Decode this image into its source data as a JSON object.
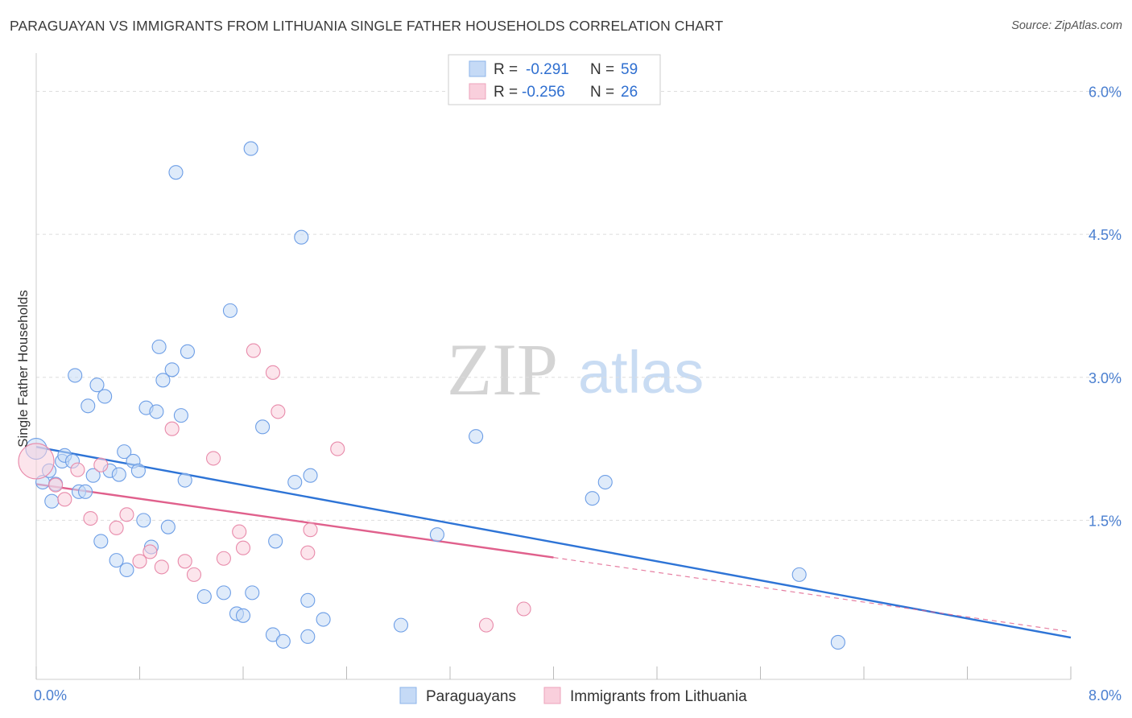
{
  "header": {
    "title": "PARAGUAYAN VS IMMIGRANTS FROM LITHUANIA SINGLE FATHER HOUSEHOLDS CORRELATION CHART",
    "source": "Source: ZipAtlas.com"
  },
  "watermark": {
    "zip": "ZIP",
    "atlas": "atlas"
  },
  "stats_legend": {
    "r_label": "R =",
    "n_label": "N =",
    "rows": [
      {
        "r": "-0.291",
        "n": "59"
      },
      {
        "r": "-0.256",
        "n": "26"
      }
    ]
  },
  "chart_data": {
    "type": "scatter",
    "title": "PARAGUAYAN VS IMMIGRANTS FROM LITHUANIA SINGLE FATHER HOUSEHOLDS CORRELATION CHART",
    "xlabel": "",
    "ylabel": "Single Father Households",
    "xlim": [
      0,
      8
    ],
    "ylim": [
      0,
      6.3
    ],
    "x_tick_labels": [
      "0.0%",
      "8.0%"
    ],
    "y_ticks": [
      1.5,
      3.0,
      4.5,
      6.0
    ],
    "y_tick_labels": [
      "1.5%",
      "3.0%",
      "4.5%",
      "6.0%"
    ],
    "grid": true,
    "legend_position": "bottom-center",
    "colors": {
      "Paraguayans": "#4a86e8",
      "Immigrants from Lithuania": "#e8729a"
    },
    "series": [
      {
        "name": "Paraguayans",
        "color": "#4a86e8",
        "trend": {
          "x": [
            0,
            8
          ],
          "y": [
            2.27,
            0.27
          ]
        },
        "points": [
          [
            0.0,
            2.25
          ],
          [
            0.05,
            1.9
          ],
          [
            0.1,
            2.02
          ],
          [
            0.12,
            1.7
          ],
          [
            0.15,
            1.88
          ],
          [
            0.2,
            2.12
          ],
          [
            0.22,
            2.18
          ],
          [
            0.28,
            2.12
          ],
          [
            0.3,
            3.02
          ],
          [
            0.33,
            1.8
          ],
          [
            0.38,
            1.8
          ],
          [
            0.4,
            2.7
          ],
          [
            0.44,
            1.97
          ],
          [
            0.47,
            2.92
          ],
          [
            0.5,
            1.28
          ],
          [
            0.53,
            2.8
          ],
          [
            0.57,
            2.02
          ],
          [
            0.62,
            1.08
          ],
          [
            0.64,
            1.98
          ],
          [
            0.68,
            2.22
          ],
          [
            0.7,
            0.98
          ],
          [
            0.75,
            2.12
          ],
          [
            0.79,
            2.02
          ],
          [
            0.83,
            1.5
          ],
          [
            0.85,
            2.68
          ],
          [
            0.89,
            1.22
          ],
          [
            0.93,
            2.64
          ],
          [
            0.95,
            3.32
          ],
          [
            0.98,
            2.97
          ],
          [
            1.02,
            1.43
          ],
          [
            1.05,
            3.08
          ],
          [
            1.08,
            5.15
          ],
          [
            1.12,
            2.6
          ],
          [
            1.15,
            1.92
          ],
          [
            1.17,
            3.27
          ],
          [
            1.3,
            0.7
          ],
          [
            1.45,
            0.74
          ],
          [
            1.5,
            3.7
          ],
          [
            1.55,
            0.52
          ],
          [
            1.6,
            0.5
          ],
          [
            1.66,
            5.4
          ],
          [
            1.67,
            0.74
          ],
          [
            1.75,
            2.48
          ],
          [
            1.83,
            0.3
          ],
          [
            1.85,
            1.28
          ],
          [
            1.91,
            0.23
          ],
          [
            2.0,
            1.9
          ],
          [
            2.05,
            4.47
          ],
          [
            2.1,
            0.28
          ],
          [
            2.1,
            0.66
          ],
          [
            2.12,
            1.97
          ],
          [
            2.22,
            0.46
          ],
          [
            2.82,
            0.4
          ],
          [
            3.1,
            1.35
          ],
          [
            3.4,
            2.38
          ],
          [
            4.3,
            1.73
          ],
          [
            4.4,
            1.9
          ],
          [
            5.9,
            0.93
          ],
          [
            6.2,
            0.22
          ]
        ]
      },
      {
        "name": "Immigrants from Lithuania",
        "color": "#e8729a",
        "trend": {
          "x": [
            0,
            4
          ],
          "y": [
            1.88,
            1.11
          ]
        },
        "trend_dashed": {
          "x": [
            4,
            8
          ],
          "y": [
            1.11,
            0.33
          ]
        },
        "points": [
          [
            0.0,
            2.12
          ],
          [
            0.15,
            1.87
          ],
          [
            0.22,
            1.72
          ],
          [
            0.32,
            2.03
          ],
          [
            0.42,
            1.52
          ],
          [
            0.5,
            2.08
          ],
          [
            0.62,
            1.42
          ],
          [
            0.7,
            1.56
          ],
          [
            0.8,
            1.07
          ],
          [
            0.88,
            1.17
          ],
          [
            0.97,
            1.01
          ],
          [
            1.05,
            2.46
          ],
          [
            1.15,
            1.07
          ],
          [
            1.22,
            0.93
          ],
          [
            1.37,
            2.15
          ],
          [
            1.45,
            1.1
          ],
          [
            1.57,
            1.38
          ],
          [
            1.6,
            1.21
          ],
          [
            1.68,
            3.28
          ],
          [
            1.83,
            3.05
          ],
          [
            1.87,
            2.64
          ],
          [
            2.1,
            1.16
          ],
          [
            2.12,
            1.4
          ],
          [
            2.33,
            2.25
          ],
          [
            3.48,
            0.4
          ],
          [
            3.77,
            0.57
          ]
        ]
      }
    ]
  },
  "bottom_legend": {
    "items": [
      {
        "label": "Paraguayans"
      },
      {
        "label": "Immigrants from Lithuania"
      }
    ]
  }
}
